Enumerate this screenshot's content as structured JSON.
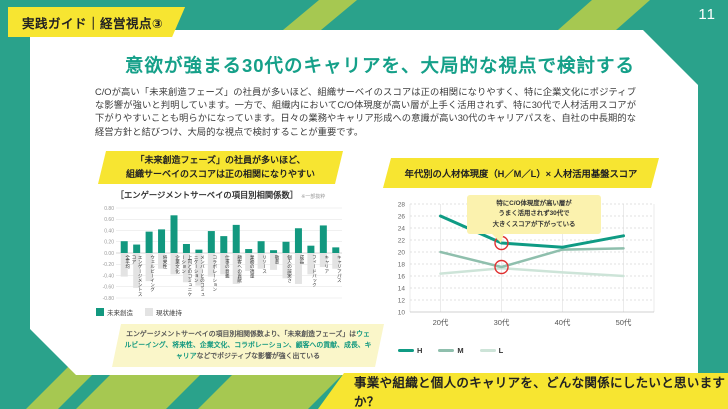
{
  "page": {
    "badge": "実践ガイド｜経営視点③",
    "page_number": "11",
    "title": "意欲が強まる30代のキャリアを、大局的な視点で検討する",
    "body": "C/Oが高い「未来創造フェーズ」の社員が多いほど、組織サーベイのスコアは正の相関になりやすく、特に企業文化にポジティブな影響が強いと判明しています。一方で、組織内においてC/O体現度が高い層が上手く活用されず、特に30代で人材活用スコアが下がりやすいことも明らかになっています。日々の業務やキャリア形成への意識が高い30代のキャリアパスを、自社の中長期的な経営方針と結びつけ、大局的な視点で検討することが重要です。",
    "footer_question": "事業や組織と個人のキャリアを、どんな関係にしたいと思いますか？"
  },
  "colors": {
    "background_teal": "#2AA28B",
    "lime": "#A6C851",
    "yellow": "#F7E531",
    "accent_teal": "#15A089",
    "note_yellow": "#FAF6C9",
    "red_highlight": "#E03131"
  },
  "left_chart": {
    "header_line1": "「未来創造フェーズ」の社員が多いほど、",
    "header_line2": "組織サーベイのスコアは正の相関になりやすい",
    "subtitle": "［エンゲージメントサーベイの項目別相関係数］",
    "subtitle_note": "※一部抜粋",
    "note": {
      "part1": "エンゲージメントサーベイの項目別相関係数より、「未来創造フェーズ」は",
      "highlight": "ウェルビーイング、将来性、企業文化、コラボレーション、顧客への貢献、成長、キャリア",
      "part2": "などでポジティブな影響が強く出ている"
    }
  },
  "right_chart": {
    "header": "年代別の人材体現度（H／M／L）× 人材活用基盤スコア",
    "annotation_lines": [
      "特にC/O体現度が高い層が",
      "うまく活用されず30代で",
      "大きくスコアが下がっている"
    ]
  },
  "chart_data": [
    {
      "type": "bar",
      "title": "エンゲージメントサーベイの項目別相関係数",
      "categories": [
        "全平均",
        "エンゲージメントスコア",
        "ウェルビーイング",
        "将来性",
        "企業文化",
        "上司とのコミュニケーション",
        "メンバーとのコミュニケーション",
        "コラボレーション",
        "仕事の意義",
        "顧客への貢献",
        "業務の適量",
        "リソース",
        "敬意",
        "個人の誠実さ",
        "成長",
        "フィードバック",
        "キャリア",
        "キャリアパス"
      ],
      "series": [
        {
          "name": "未来創造",
          "color": "#12987F",
          "values": [
            0.21,
            0.15,
            0.38,
            0.42,
            0.67,
            0.16,
            0.06,
            0.39,
            0.3,
            0.5,
            0.07,
            0.21,
            0.05,
            0.2,
            0.44,
            0.13,
            0.49,
            0.1
          ]
        },
        {
          "name": "現状維持",
          "color": "#E3E3E3",
          "values": [
            -0.42,
            -0.62,
            -0.5,
            -0.28,
            -0.38,
            -0.52,
            -0.58,
            -0.42,
            -0.38,
            -0.55,
            -0.32,
            -0.28,
            -0.3,
            -0.45,
            -0.55,
            -0.38,
            -0.25,
            -0.28
          ]
        }
      ],
      "ylim": [
        -0.8,
        0.8
      ],
      "ytick_step": 0.2,
      "legend_position": "bottom-left",
      "grid": true
    },
    {
      "type": "line",
      "title": "年代別の人材体現度（H／M／L）× 人材活用基盤スコア",
      "x": [
        "20代",
        "30代",
        "40代",
        "50代"
      ],
      "series": [
        {
          "name": "H",
          "color": "#0F9B84",
          "width": 3,
          "values": [
            26.0,
            21.5,
            20.8,
            22.7
          ]
        },
        {
          "name": "M",
          "color": "#8FBFAD",
          "width": 2.5,
          "values": [
            20.0,
            17.5,
            20.4,
            20.6
          ]
        },
        {
          "name": "L",
          "color": "#CDE4D8",
          "width": 2.5,
          "values": [
            16.4,
            17.3,
            16.6,
            16.0
          ]
        }
      ],
      "ylim": [
        10,
        28
      ],
      "ytick_step": 2,
      "highlights": [
        {
          "x": "30代",
          "series": "H"
        },
        {
          "x": "30代",
          "series": "M"
        }
      ],
      "legend_position": "bottom-left",
      "grid": true
    }
  ]
}
